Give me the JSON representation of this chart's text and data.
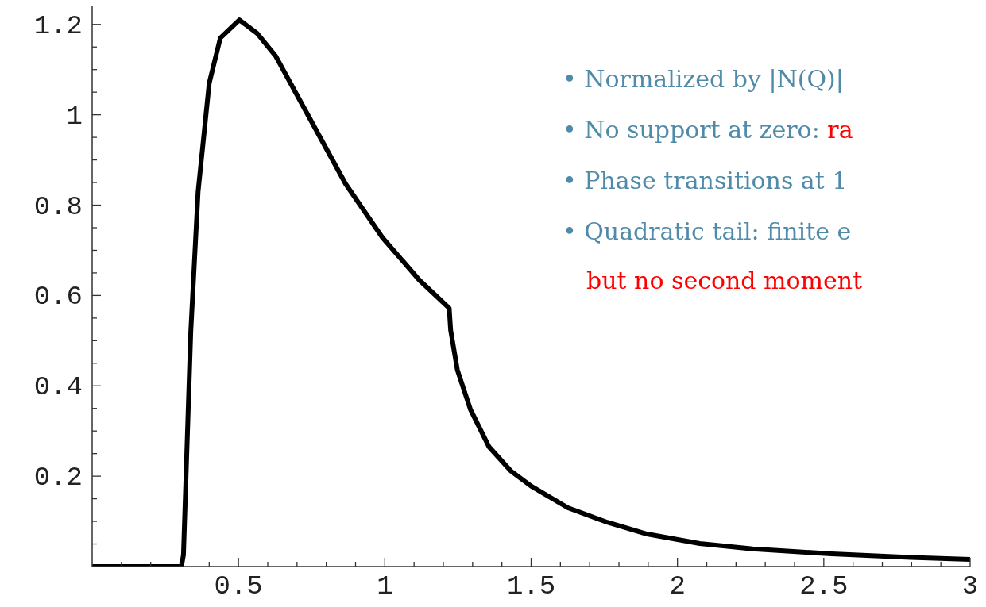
{
  "chart_data": {
    "type": "line",
    "annotations": [
      "• Normalized by |N(Q)|",
      "• No support at zero:",
      "ra",
      "• Phase transitions at 1",
      "• Quadratic tail: finite e",
      "but no second moment"
    ],
    "series": [
      {
        "color": "#000000",
        "x": [
          0,
          0.305,
          0.312,
          0.337,
          0.362,
          0.4,
          0.438,
          0.503,
          0.564,
          0.627,
          0.741,
          0.866,
          0.992,
          1.118,
          1.22,
          1.225,
          1.248,
          1.293,
          1.356,
          1.43,
          1.5,
          1.626,
          1.76,
          1.896,
          2.076,
          2.257,
          2.527,
          2.797,
          3.0
        ],
        "values": [
          0,
          0,
          0.026,
          0.52,
          0.83,
          1.07,
          1.17,
          1.21,
          1.18,
          1.13,
          0.995,
          0.847,
          0.728,
          0.634,
          0.572,
          0.523,
          0.435,
          0.347,
          0.265,
          0.212,
          0.178,
          0.13,
          0.098,
          0.072,
          0.051,
          0.039,
          0.028,
          0.02,
          0.016
        ]
      }
    ],
    "xlim": [
      0,
      3
    ],
    "ylim": [
      0,
      1.24
    ],
    "xticks": [
      {
        "value": 0.1,
        "label": null
      },
      {
        "value": 0.2,
        "label": null
      },
      {
        "value": 0.3,
        "label": null
      },
      {
        "value": 0.4,
        "label": null
      },
      0.5,
      {
        "value": 0.6,
        "label": null
      },
      {
        "value": 0.7,
        "label": null
      },
      {
        "value": 0.8,
        "label": null
      },
      {
        "value": 0.9,
        "label": null
      },
      1,
      {
        "value": 1.1,
        "label": null
      },
      {
        "value": 1.2,
        "label": null
      },
      {
        "value": 1.3,
        "label": null
      },
      {
        "value": 1.4,
        "label": null
      },
      1.5,
      {
        "value": 1.6,
        "label": null
      },
      {
        "value": 1.7,
        "label": null
      },
      {
        "value": 1.8,
        "label": null
      },
      {
        "value": 1.9,
        "label": null
      },
      2,
      {
        "value": 2.1,
        "label": null
      },
      {
        "value": 2.2,
        "label": null
      },
      {
        "value": 2.3,
        "label": null
      },
      {
        "value": 2.4,
        "label": null
      },
      2.5,
      {
        "value": 2.6,
        "label": null
      },
      {
        "value": 2.7,
        "label": null
      },
      {
        "value": 2.8,
        "label": null
      },
      {
        "value": 2.9,
        "label": null
      },
      3
    ],
    "yticks": [
      {
        "value": 0.05,
        "label": null
      },
      {
        "value": 0.1,
        "label": null
      },
      {
        "value": 0.15,
        "label": null
      },
      0.2,
      {
        "value": 0.25,
        "label": null
      },
      {
        "value": 0.3,
        "label": null
      },
      {
        "value": 0.35,
        "label": null
      },
      0.4,
      {
        "value": 0.45,
        "label": null
      },
      {
        "value": 0.5,
        "label": null
      },
      {
        "value": 0.55,
        "label": null
      },
      0.6,
      {
        "value": 0.65,
        "label": null
      },
      {
        "value": 0.7,
        "label": null
      },
      {
        "value": 0.75,
        "label": null
      },
      0.8,
      {
        "value": 0.85,
        "label": null
      },
      {
        "value": 0.9,
        "label": null
      },
      {
        "value": 0.95,
        "label": null
      },
      1,
      {
        "value": 1.05,
        "label": null
      },
      {
        "value": 1.1,
        "label": null
      },
      {
        "value": 1.15,
        "label": null
      },
      1.2
    ],
    "grid": false,
    "marker": "none",
    "line_style": "solid"
  }
}
